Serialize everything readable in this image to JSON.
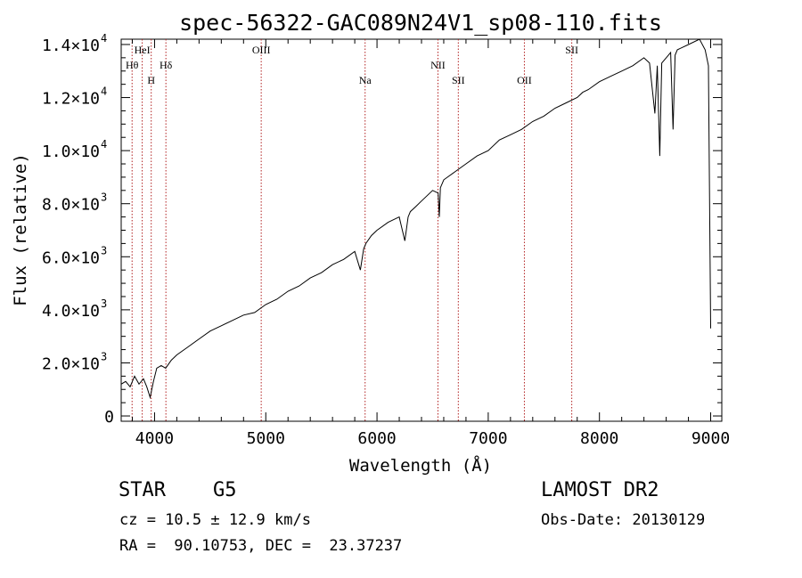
{
  "chart_data": {
    "type": "line",
    "title": "spec-56322-GAC089N24V1_sp08-110.fits",
    "xlabel": "Wavelength (Å)",
    "ylabel": "Flux (relative)",
    "xlim": [
      3700,
      9100
    ],
    "ylim": [
      -200,
      14200
    ],
    "xticks": [
      {
        "value": 4000,
        "label": "4000"
      },
      {
        "value": 5000,
        "label": "5000"
      },
      {
        "value": 6000,
        "label": "6000"
      },
      {
        "value": 7000,
        "label": "7000"
      },
      {
        "value": 8000,
        "label": "8000"
      },
      {
        "value": 9000,
        "label": "9000"
      }
    ],
    "yticks": [
      {
        "value": 0,
        "mant": "0",
        "exp": ""
      },
      {
        "value": 2000,
        "mant": "2.0×10",
        "exp": "3"
      },
      {
        "value": 4000,
        "mant": "4.0×10",
        "exp": "3"
      },
      {
        "value": 6000,
        "mant": "6.0×10",
        "exp": "3"
      },
      {
        "value": 8000,
        "mant": "8.0×10",
        "exp": "3"
      },
      {
        "value": 10000,
        "mant": "1.0×10",
        "exp": "4"
      },
      {
        "value": 12000,
        "mant": "1.2×10",
        "exp": "4"
      },
      {
        "value": 14000,
        "mant": "1.4×10",
        "exp": "4"
      }
    ],
    "lines": [
      {
        "label": "Hθ",
        "wavelength": 3798,
        "row": 2
      },
      {
        "label": "HeI",
        "wavelength": 3889,
        "row": 1
      },
      {
        "label": "H",
        "wavelength": 3970,
        "row": 3
      },
      {
        "label": "Hδ",
        "wavelength": 4102,
        "row": 2
      },
      {
        "label": "OIII",
        "wavelength": 4959,
        "row": 1
      },
      {
        "label": "Na",
        "wavelength": 5893,
        "row": 3
      },
      {
        "label": "NII",
        "wavelength": 6548,
        "row": 2
      },
      {
        "label": "SII",
        "wavelength": 6731,
        "row": 3
      },
      {
        "label": "OII",
        "wavelength": 7325,
        "row": 3
      },
      {
        "label": "SII",
        "wavelength": 7751,
        "row": 1
      }
    ],
    "series": [
      {
        "x": [
          3700,
          3740,
          3780,
          3820,
          3860,
          3900,
          3930,
          3960,
          3990,
          4020,
          4060,
          4100,
          4150,
          4200,
          4300,
          4400,
          4500,
          4600,
          4700,
          4800,
          4900,
          5000,
          5100,
          5200,
          5300,
          5400,
          5500,
          5600,
          5700,
          5800,
          5850,
          5880,
          5900,
          5950,
          6000,
          6100,
          6200,
          6250,
          6280,
          6300,
          6350,
          6400,
          6500,
          6550,
          6560,
          6570,
          6600,
          6700,
          6800,
          6900,
          7000,
          7100,
          7200,
          7300,
          7400,
          7500,
          7600,
          7700,
          7800,
          7850,
          7900,
          8000,
          8100,
          8200,
          8300,
          8400,
          8450,
          8498,
          8520,
          8542,
          8560,
          8600,
          8640,
          8662,
          8680,
          8700,
          8800,
          8900,
          8950,
          8980,
          9000
        ],
        "y": [
          1200,
          1300,
          1100,
          1500,
          1200,
          1400,
          1100,
          700,
          1300,
          1800,
          1900,
          1800,
          2100,
          2300,
          2600,
          2900,
          3200,
          3400,
          3600,
          3800,
          3900,
          4200,
          4400,
          4700,
          4900,
          5200,
          5400,
          5700,
          5900,
          6200,
          5500,
          6300,
          6500,
          6800,
          7000,
          7300,
          7500,
          6600,
          7500,
          7700,
          7900,
          8100,
          8500,
          8400,
          7500,
          8600,
          8900,
          9200,
          9500,
          9800,
          10000,
          10400,
          10600,
          10800,
          11100,
          11300,
          11600,
          11800,
          12000,
          12200,
          12300,
          12600,
          12800,
          13000,
          13200,
          13500,
          13300,
          11400,
          13200,
          9800,
          13300,
          13500,
          13700,
          10800,
          13600,
          13800,
          14000,
          14200,
          13800,
          13200,
          3300
        ]
      }
    ]
  },
  "info": {
    "object": "STAR    G5",
    "survey": "LAMOST DR2",
    "cz": "cz = 10.5 ± 12.9 km/s",
    "obsdate": "Obs-Date: 20130129",
    "radec": "RA =  90.10753, DEC =  23.37237"
  }
}
